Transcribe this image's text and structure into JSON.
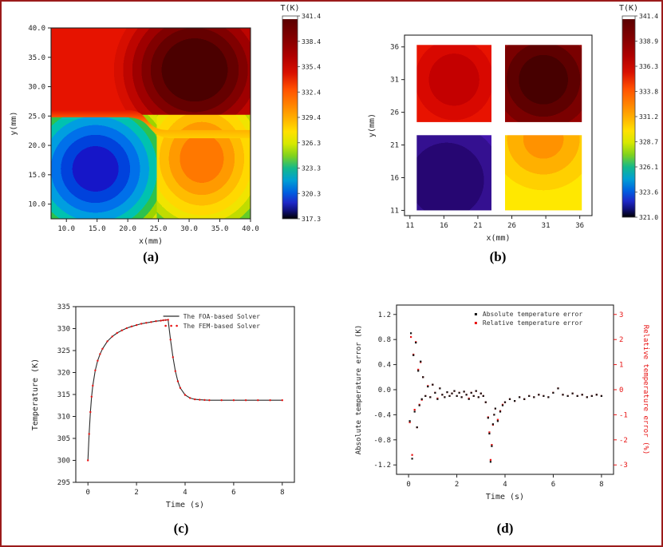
{
  "figure": {
    "background": "#ffffff",
    "border_color": "#9b1b1b"
  },
  "colormap": {
    "stops": [
      [
        0,
        "#ffffff"
      ],
      [
        0.015,
        "#ffffff"
      ],
      [
        0.015,
        "#5a0000"
      ],
      [
        0.06,
        "#6e0000"
      ],
      [
        0.13,
        "#8c0000"
      ],
      [
        0.2,
        "#b00000"
      ],
      [
        0.28,
        "#d81000"
      ],
      [
        0.36,
        "#ff4f00"
      ],
      [
        0.44,
        "#ff8400"
      ],
      [
        0.51,
        "#ffb400"
      ],
      [
        0.57,
        "#ffe100"
      ],
      [
        0.63,
        "#d6e800"
      ],
      [
        0.69,
        "#7fd21e"
      ],
      [
        0.75,
        "#14b98a"
      ],
      [
        0.81,
        "#009fd4"
      ],
      [
        0.87,
        "#005fe0"
      ],
      [
        0.92,
        "#1e28c8"
      ],
      [
        0.96,
        "#101078"
      ],
      [
        1,
        "#000000"
      ]
    ]
  },
  "panels": {
    "a": {
      "label": "(a)",
      "colorbar_title": "T(K)",
      "colorbar_ticks": [
        "341.4",
        "338.4",
        "335.4",
        "332.4",
        "329.4",
        "326.3",
        "323.3",
        "320.3",
        "317.3"
      ],
      "xlabel": "x(mm)",
      "ylabel": "y(mm)",
      "x_tick_labels": [
        "10.0",
        "15.0",
        "20.0",
        "25.0",
        "30.0",
        "35.0",
        "40.0"
      ],
      "y_tick_labels": [
        "10.0",
        "15.0",
        "20.0",
        "25.0",
        "30.0",
        "35.0",
        "40.0"
      ]
    },
    "b": {
      "label": "(b)",
      "colorbar_title": "T(K)",
      "colorbar_ticks": [
        "341.4",
        "338.9",
        "336.3",
        "333.8",
        "331.2",
        "328.7",
        "326.1",
        "323.6",
        "321.0"
      ],
      "xlabel": "x(mm)",
      "ylabel": "y(mm)",
      "x_tick_labels": [
        "11",
        "16",
        "21",
        "26",
        "31",
        "36"
      ],
      "y_tick_labels": [
        "11",
        "16",
        "21",
        "26",
        "31",
        "36"
      ]
    },
    "c": {
      "label": "(c)",
      "xlabel": "Time (s)",
      "ylabel": "Temperature (K)",
      "x_tick_labels": [
        "0",
        "2",
        "4",
        "6",
        "8"
      ],
      "y_tick_labels": [
        "335",
        "330",
        "325",
        "320",
        "315",
        "310",
        "305",
        "300",
        "295"
      ],
      "legend": [
        "The FOA-based Solver",
        "The FEM-based Solver"
      ]
    },
    "d": {
      "label": "(d)",
      "xlabel": "Time (s)",
      "ylabel_left": "Absolute temperature error (K)",
      "ylabel_right": "Relative temperature error (%)",
      "x_tick_labels": [
        "0",
        "2",
        "4",
        "6",
        "8"
      ],
      "y_tick_labels_left": [
        "1.2",
        "0.8",
        "0.4",
        "0.0",
        "-0.4",
        "-0.8",
        "-1.2"
      ],
      "y_tick_labels_right": [
        "3",
        "2",
        "1",
        "0",
        "-1",
        "-2",
        "-3"
      ],
      "legend": [
        "Absolute temperature error",
        "Relative temperature error"
      ]
    }
  },
  "chart_data": [
    {
      "id": "a",
      "type": "heatmap",
      "title": "T(K)",
      "xlabel": "x(mm)",
      "ylabel": "y(mm)",
      "x_range": [
        7.5,
        40
      ],
      "y_range": [
        7.5,
        40
      ],
      "x_ticks": [
        10,
        15,
        20,
        25,
        30,
        35,
        40
      ],
      "y_ticks": [
        10,
        15,
        20,
        25,
        30,
        35,
        40
      ],
      "colorbar_range": [
        317.3,
        341.4
      ],
      "colorbar_ticks": [
        341.4,
        338.4,
        335.4,
        332.4,
        329.4,
        326.3,
        323.3,
        320.3,
        317.3
      ],
      "regions": [
        {
          "name": "hot-zone-top",
          "approx_temp_K": 338
        },
        {
          "name": "hottest-blob-top-right",
          "center_mm": [
            30,
            31
          ],
          "approx_temp_K": 341.4
        },
        {
          "name": "cold-blob-bottom-left",
          "center_mm": [
            14,
            15
          ],
          "approx_temp_K": 318
        },
        {
          "name": "warm-blob-bottom-right",
          "center_mm": [
            30,
            14
          ],
          "approx_temp_K": 332
        }
      ]
    },
    {
      "id": "b",
      "type": "heatmap",
      "title": "T(K)",
      "xlabel": "x(mm)",
      "ylabel": "y(mm)",
      "x_range": [
        10.2,
        37.8
      ],
      "y_range": [
        10.2,
        37.8
      ],
      "x_ticks": [
        11,
        16,
        21,
        26,
        31,
        36
      ],
      "y_ticks": [
        11,
        16,
        21,
        26,
        31,
        36
      ],
      "colorbar_range": [
        321.0,
        341.4
      ],
      "colorbar_ticks": [
        341.4,
        338.9,
        336.3,
        333.8,
        331.2,
        328.7,
        326.1,
        323.6,
        321.0
      ],
      "heaters": [
        {
          "name": "top-left",
          "x": [
            12,
            23
          ],
          "y": [
            24.5,
            36.3
          ],
          "approx_temp_K": 337
        },
        {
          "name": "top-right",
          "x": [
            25,
            36.3
          ],
          "y": [
            24.5,
            36.3
          ],
          "approx_temp_K": 341.4
        },
        {
          "name": "bottom-left",
          "x": [
            12,
            23
          ],
          "y": [
            11,
            22.5
          ],
          "approx_temp_K": 322
        },
        {
          "name": "bottom-right",
          "x": [
            25,
            36.3
          ],
          "y": [
            11,
            22.5
          ],
          "approx_temp_K": 331
        }
      ]
    },
    {
      "id": "c",
      "type": "line",
      "xlabel": "Time (s)",
      "ylabel": "Temperature (K)",
      "xlim": [
        -0.5,
        8.5
      ],
      "ylim": [
        295,
        335
      ],
      "x_ticks": [
        0,
        2,
        4,
        6,
        8
      ],
      "y_ticks": [
        335,
        330,
        325,
        320,
        315,
        310,
        305,
        300,
        295
      ],
      "series": [
        {
          "name": "The FOA-based Solver",
          "color": "#2a2a2a",
          "style": "line",
          "x": [
            0,
            0.05,
            0.1,
            0.15,
            0.2,
            0.3,
            0.4,
            0.5,
            0.6,
            0.8,
            1.0,
            1.2,
            1.4,
            1.6,
            1.8,
            2.0,
            2.2,
            2.4,
            2.6,
            2.8,
            3.0,
            3.1,
            3.2,
            3.3,
            3.4,
            3.5,
            3.6,
            3.7,
            3.8,
            4.0,
            4.2,
            4.4,
            4.6,
            4.8,
            5.0,
            5.5,
            6.0,
            6.5,
            7.0,
            7.5,
            8.0
          ],
          "y": [
            300,
            306,
            311,
            314.5,
            317,
            320.5,
            322.7,
            324.2,
            325.4,
            327.1,
            328.2,
            329.0,
            329.6,
            330.1,
            330.5,
            330.8,
            331.1,
            331.3,
            331.5,
            331.7,
            331.8,
            331.9,
            331.95,
            332.0,
            327.5,
            323.5,
            320.3,
            318.0,
            316.5,
            314.9,
            314.2,
            313.9,
            313.8,
            313.75,
            313.7,
            313.7,
            313.7,
            313.7,
            313.7,
            313.7,
            313.7
          ]
        },
        {
          "name": "The FEM-based Solver",
          "color": "#e81313",
          "style": "dots",
          "x": [
            0,
            0.05,
            0.1,
            0.15,
            0.2,
            0.3,
            0.4,
            0.5,
            0.6,
            0.8,
            1.0,
            1.2,
            1.4,
            1.6,
            1.8,
            2.0,
            2.2,
            2.4,
            2.6,
            2.8,
            3.0,
            3.1,
            3.2,
            3.3,
            3.4,
            3.5,
            3.6,
            3.7,
            3.8,
            4.0,
            4.2,
            4.4,
            4.6,
            4.8,
            5.0,
            5.5,
            6.0,
            6.5,
            7.0,
            7.5,
            8.0
          ],
          "y": [
            300,
            306,
            311,
            314.5,
            317,
            320.5,
            322.7,
            324.2,
            325.4,
            327.1,
            328.2,
            329.0,
            329.6,
            330.1,
            330.5,
            330.8,
            331.1,
            331.3,
            331.5,
            331.7,
            331.8,
            331.9,
            331.95,
            332.0,
            327.5,
            323.5,
            320.3,
            318.0,
            316.5,
            314.9,
            314.2,
            313.9,
            313.8,
            313.75,
            313.7,
            313.7,
            313.7,
            313.7,
            313.7,
            313.7,
            313.7
          ]
        }
      ]
    },
    {
      "id": "d",
      "type": "scatter",
      "xlabel": "Time (s)",
      "ylabel_left": "Absolute temperature error (K)",
      "ylabel_right": "Relative temperature error (%)",
      "xlim": [
        -0.5,
        8.5
      ],
      "ylim_left": [
        -1.35,
        1.35
      ],
      "ylim_right": [
        -3.375,
        3.375
      ],
      "x_ticks": [
        0,
        2,
        4,
        6,
        8
      ],
      "y_ticks_left": [
        1.2,
        0.8,
        0.4,
        0.0,
        -0.4,
        -0.8,
        -1.2
      ],
      "y_ticks_right": [
        3,
        2,
        1,
        0,
        -1,
        -2,
        -3
      ],
      "t": [
        0.05,
        0.1,
        0.15,
        0.2,
        0.25,
        0.3,
        0.35,
        0.4,
        0.45,
        0.5,
        0.55,
        0.6,
        0.7,
        0.8,
        0.9,
        1.0,
        1.1,
        1.2,
        1.3,
        1.4,
        1.5,
        1.6,
        1.7,
        1.8,
        1.9,
        2.0,
        2.1,
        2.2,
        2.3,
        2.4,
        2.5,
        2.6,
        2.7,
        2.8,
        2.9,
        3.0,
        3.1,
        3.2,
        3.3,
        3.35,
        3.4,
        3.45,
        3.5,
        3.55,
        3.6,
        3.7,
        3.8,
        3.9,
        4.0,
        4.2,
        4.4,
        4.6,
        4.8,
        5.0,
        5.2,
        5.4,
        5.6,
        5.8,
        6.0,
        6.2,
        6.4,
        6.6,
        6.8,
        7.0,
        7.2,
        7.4,
        7.6,
        7.8,
        8.0
      ],
      "series": [
        {
          "name": "Absolute temperature error",
          "color": "#141414",
          "axis": "left",
          "values": [
            -0.5,
            0.9,
            -1.1,
            0.55,
            -0.35,
            0.75,
            -0.6,
            0.3,
            -0.25,
            0.45,
            -0.15,
            0.2,
            -0.1,
            0.05,
            -0.12,
            0.08,
            -0.05,
            -0.15,
            0.02,
            -0.08,
            -0.12,
            -0.04,
            -0.1,
            -0.06,
            -0.02,
            -0.1,
            -0.05,
            -0.12,
            -0.03,
            -0.08,
            -0.15,
            -0.05,
            -0.1,
            -0.02,
            -0.12,
            -0.06,
            -0.1,
            -0.2,
            -0.45,
            -0.7,
            -1.15,
            -0.9,
            -0.55,
            -0.4,
            -0.3,
            -0.5,
            -0.35,
            -0.25,
            -0.2,
            -0.15,
            -0.18,
            -0.12,
            -0.15,
            -0.1,
            -0.12,
            -0.08,
            -0.1,
            -0.12,
            -0.05,
            0.02,
            -0.08,
            -0.1,
            -0.06,
            -0.1,
            -0.08,
            -0.12,
            -0.1,
            -0.08,
            -0.1
          ]
        },
        {
          "name": "Relative temperature error",
          "color": "#e81313",
          "axis": "right",
          "values": [
            -1.3,
            2.1,
            -2.6,
            1.4,
            -0.8,
            1.9,
            -1.5,
            0.8,
            -0.6,
            1.1,
            -0.4,
            0.5,
            -0.25,
            0.15,
            -0.3,
            0.2,
            -0.12,
            -0.35,
            0.05,
            -0.2,
            -0.3,
            -0.1,
            -0.25,
            -0.15,
            -0.05,
            -0.25,
            -0.12,
            -0.3,
            -0.08,
            -0.2,
            -0.35,
            -0.12,
            -0.25,
            -0.05,
            -0.3,
            -0.15,
            -0.25,
            -0.5,
            -1.1,
            -1.7,
            -2.8,
            -2.2,
            -1.4,
            -1.0,
            -0.75,
            -1.2,
            -0.85,
            -0.6,
            -0.5,
            -0.38,
            -0.45,
            -0.3,
            -0.38,
            -0.25,
            -0.3,
            -0.2,
            -0.25,
            -0.3,
            -0.12,
            0.05,
            -0.2,
            -0.25,
            -0.15,
            -0.25,
            -0.2,
            -0.3,
            -0.25,
            -0.2,
            -0.25
          ]
        }
      ]
    }
  ]
}
